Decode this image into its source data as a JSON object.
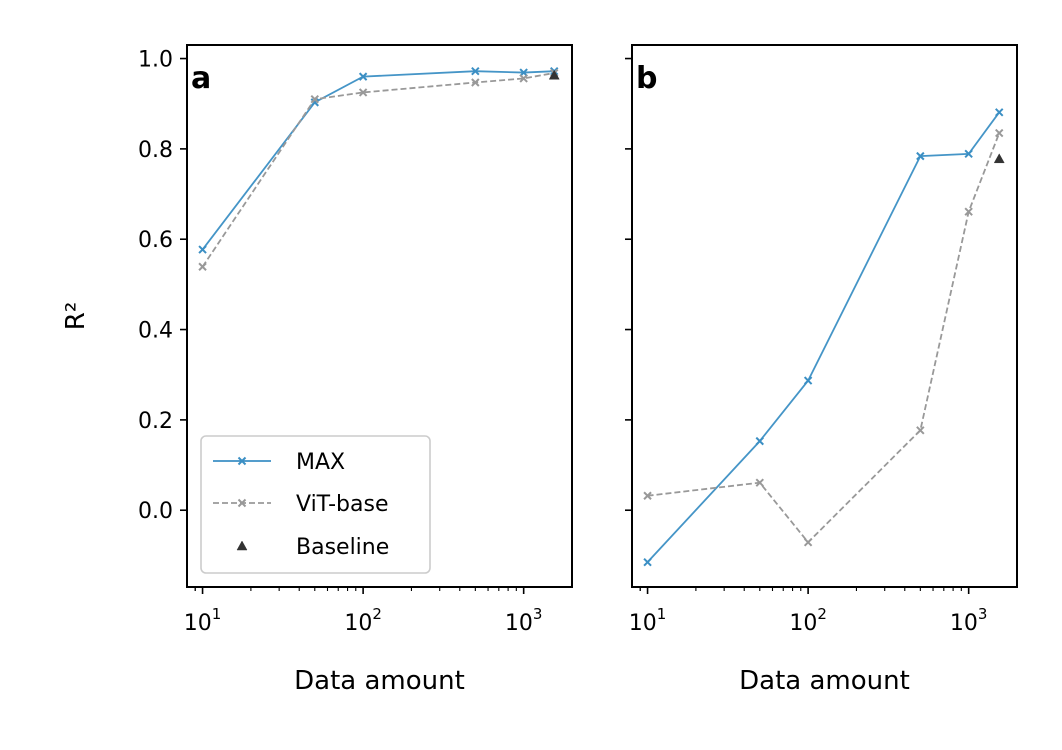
{
  "chart_data": [
    {
      "type": "line",
      "panel_label": "a",
      "xlabel": "Data amount",
      "ylabel": "R²",
      "x_scale": "log",
      "xlim": [
        8,
        2000
      ],
      "ylim": [
        -0.17,
        1.03
      ],
      "x_ticks": [
        {
          "value": 10,
          "base": "10",
          "exp": "1"
        },
        {
          "value": 100,
          "base": "10",
          "exp": "2"
        },
        {
          "value": 1000,
          "base": "10",
          "exp": "3"
        }
      ],
      "y_ticks": [
        {
          "value": 0.0,
          "label": "0.0"
        },
        {
          "value": 0.2,
          "label": "0.2"
        },
        {
          "value": 0.4,
          "label": "0.4"
        },
        {
          "value": 0.6,
          "label": "0.6"
        },
        {
          "value": 0.8,
          "label": "0.8"
        },
        {
          "value": 1.0,
          "label": "1.0"
        }
      ],
      "series": [
        {
          "name": "MAX",
          "style": "solid",
          "marker": "x",
          "color": "#3b8fc4",
          "x": [
            10,
            50,
            100,
            500,
            1000,
            1550
          ],
          "y": [
            0.577,
            0.903,
            0.96,
            0.972,
            0.969,
            0.972
          ]
        },
        {
          "name": "ViT-base",
          "style": "dashed",
          "marker": "x",
          "color": "#999999",
          "x": [
            10,
            50,
            100,
            500,
            1000,
            1550
          ],
          "y": [
            0.539,
            0.91,
            0.925,
            0.947,
            0.956,
            0.968
          ]
        },
        {
          "name": "Baseline",
          "style": "none",
          "marker": "triangle",
          "color": "#333333",
          "x": [
            1550
          ],
          "y": [
            0.963
          ]
        }
      ],
      "legend": {
        "position": "lower-left",
        "entries": [
          "MAX",
          "ViT-base",
          "Baseline"
        ]
      }
    },
    {
      "type": "line",
      "panel_label": "b",
      "xlabel": "Data amount",
      "x_scale": "log",
      "xlim": [
        8,
        2000
      ],
      "ylim": [
        -0.17,
        1.03
      ],
      "x_ticks": [
        {
          "value": 10,
          "base": "10",
          "exp": "1"
        },
        {
          "value": 100,
          "base": "10",
          "exp": "2"
        },
        {
          "value": 1000,
          "base": "10",
          "exp": "3"
        }
      ],
      "y_ticks": [
        {
          "value": 0.0
        },
        {
          "value": 0.2
        },
        {
          "value": 0.4
        },
        {
          "value": 0.6
        },
        {
          "value": 0.8
        },
        {
          "value": 1.0
        }
      ],
      "series": [
        {
          "name": "MAX",
          "style": "solid",
          "marker": "x",
          "color": "#3b8fc4",
          "x": [
            10,
            50,
            100,
            500,
            1000,
            1550
          ],
          "y": [
            -0.115,
            0.153,
            0.287,
            0.784,
            0.789,
            0.881
          ]
        },
        {
          "name": "ViT-base",
          "style": "dashed",
          "marker": "x",
          "color": "#999999",
          "x": [
            10,
            50,
            100,
            500,
            1000,
            1550
          ],
          "y": [
            0.032,
            0.061,
            -0.071,
            0.177,
            0.661,
            0.835
          ]
        },
        {
          "name": "Baseline",
          "style": "none",
          "marker": "triangle",
          "color": "#333333",
          "x": [
            1550
          ],
          "y": [
            0.778
          ]
        }
      ]
    }
  ]
}
